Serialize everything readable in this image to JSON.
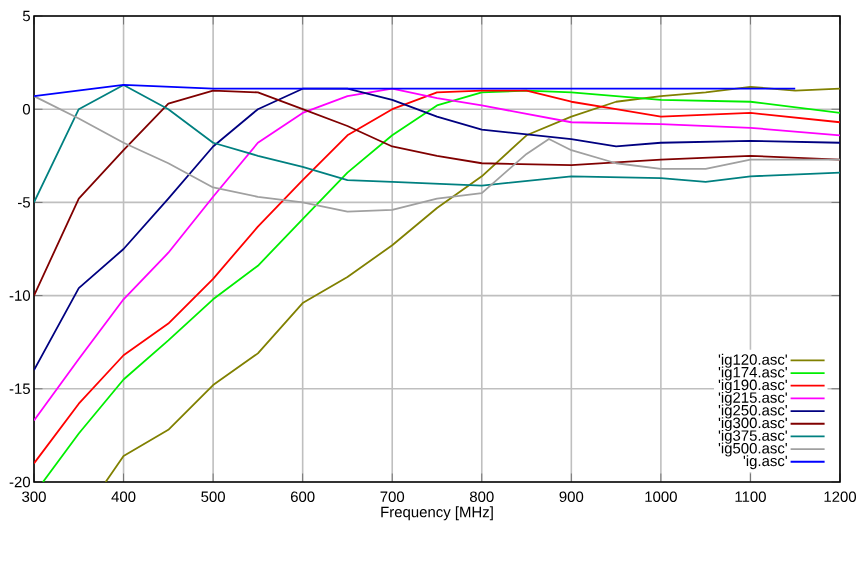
{
  "chart_data": {
    "type": "line",
    "xlabel": "Frequency [MHz]",
    "xlim": [
      300,
      1200
    ],
    "ylim": [
      -20,
      5
    ],
    "xticks": [
      300,
      400,
      500,
      600,
      700,
      800,
      900,
      1000,
      1100,
      1200
    ],
    "yticks": [
      -20,
      -15,
      -10,
      -5,
      0,
      5
    ],
    "grid": true,
    "legend": "bottom right",
    "series": [
      {
        "name": "'ig120.asc'",
        "color": "#808000",
        "x": [
          380,
          400,
          450,
          500,
          550,
          600,
          650,
          700,
          750,
          800,
          850,
          900,
          950,
          1000,
          1050,
          1100,
          1150,
          1200
        ],
        "values": [
          -20,
          -18.6,
          -17.2,
          -14.8,
          -13.1,
          -10.4,
          -9.0,
          -7.3,
          -5.3,
          -3.6,
          -1.4,
          -0.4,
          0.4,
          0.7,
          0.9,
          1.2,
          1.0,
          1.1
        ]
      },
      {
        "name": "'ig174.asc'",
        "color": "#00ee00",
        "x": [
          310,
          350,
          400,
          450,
          500,
          550,
          600,
          650,
          700,
          750,
          800,
          850,
          900,
          1000,
          1100,
          1200
        ],
        "values": [
          -20,
          -17.4,
          -14.5,
          -12.4,
          -10.2,
          -8.4,
          -5.9,
          -3.4,
          -1.4,
          0.2,
          0.9,
          1.0,
          0.9,
          0.5,
          0.4,
          -0.2
        ]
      },
      {
        "name": "'ig190.asc'",
        "color": "#ff0000",
        "x": [
          300,
          350,
          400,
          450,
          500,
          550,
          600,
          650,
          700,
          750,
          800,
          850,
          900,
          950,
          1000,
          1100,
          1200
        ],
        "values": [
          -19.0,
          -15.8,
          -13.2,
          -11.5,
          -9.1,
          -6.3,
          -3.8,
          -1.4,
          0,
          0.9,
          1.0,
          1.0,
          0.4,
          0.0,
          -0.4,
          -0.2,
          -0.7
        ]
      },
      {
        "name": "'ig215.asc'",
        "color": "#ff00ff",
        "x": [
          300,
          350,
          400,
          450,
          500,
          550,
          600,
          650,
          700,
          750,
          800,
          900,
          1000,
          1100,
          1200
        ],
        "values": [
          -16.7,
          -13.4,
          -10.2,
          -7.7,
          -4.7,
          -1.8,
          -0.2,
          0.7,
          1.1,
          0.6,
          0.2,
          -0.7,
          -0.8,
          -1.0,
          -1.4
        ]
      },
      {
        "name": "'ig250.asc'",
        "color": "#000080",
        "x": [
          300,
          350,
          400,
          450,
          500,
          550,
          600,
          650,
          700,
          750,
          800,
          900,
          950,
          1000,
          1100,
          1200
        ],
        "values": [
          -14.0,
          -9.6,
          -7.5,
          -4.8,
          -2.0,
          0,
          1.1,
          1.1,
          0.5,
          -0.4,
          -1.1,
          -1.6,
          -2.0,
          -1.8,
          -1.7,
          -1.8
        ]
      },
      {
        "name": "'ig300.asc'",
        "color": "#800000",
        "x": [
          300,
          350,
          400,
          450,
          500,
          550,
          600,
          650,
          700,
          750,
          800,
          900,
          1000,
          1100,
          1200
        ],
        "values": [
          -10.0,
          -4.8,
          -2.2,
          0.3,
          1.0,
          0.9,
          0,
          -0.9,
          -2.0,
          -2.5,
          -2.9,
          -3.0,
          -2.7,
          -2.5,
          -2.7
        ]
      },
      {
        "name": "'ig375.asc'",
        "color": "#008080",
        "x": [
          300,
          350,
          400,
          450,
          500,
          550,
          600,
          650,
          700,
          800,
          900,
          1000,
          1050,
          1100,
          1200
        ],
        "values": [
          -5.0,
          0,
          1.3,
          0,
          -1.8,
          -2.5,
          -3.1,
          -3.8,
          -3.9,
          -4.1,
          -3.6,
          -3.7,
          -3.9,
          -3.6,
          -3.4
        ]
      },
      {
        "name": "'ig500.asc'",
        "color": "#a0a0a0",
        "x": [
          300,
          350,
          400,
          450,
          500,
          550,
          600,
          650,
          700,
          750,
          800,
          850,
          875,
          900,
          950,
          1000,
          1050,
          1100,
          1200
        ],
        "values": [
          0.7,
          -0.5,
          -1.8,
          -2.9,
          -4.2,
          -4.7,
          -5.0,
          -5.5,
          -5.4,
          -4.8,
          -4.5,
          -2.4,
          -1.6,
          -2.2,
          -2.9,
          -3.2,
          -3.2,
          -2.7,
          -2.7
        ]
      },
      {
        "name": "'ig.asc'",
        "color": "#0000ff",
        "x": [
          300,
          400,
          500,
          600,
          700,
          800,
          900,
          1000,
          1100,
          1150
        ],
        "values": [
          0.7,
          1.3,
          1.1,
          1.1,
          1.1,
          1.1,
          1.1,
          1.1,
          1.1,
          1.1
        ]
      }
    ]
  }
}
